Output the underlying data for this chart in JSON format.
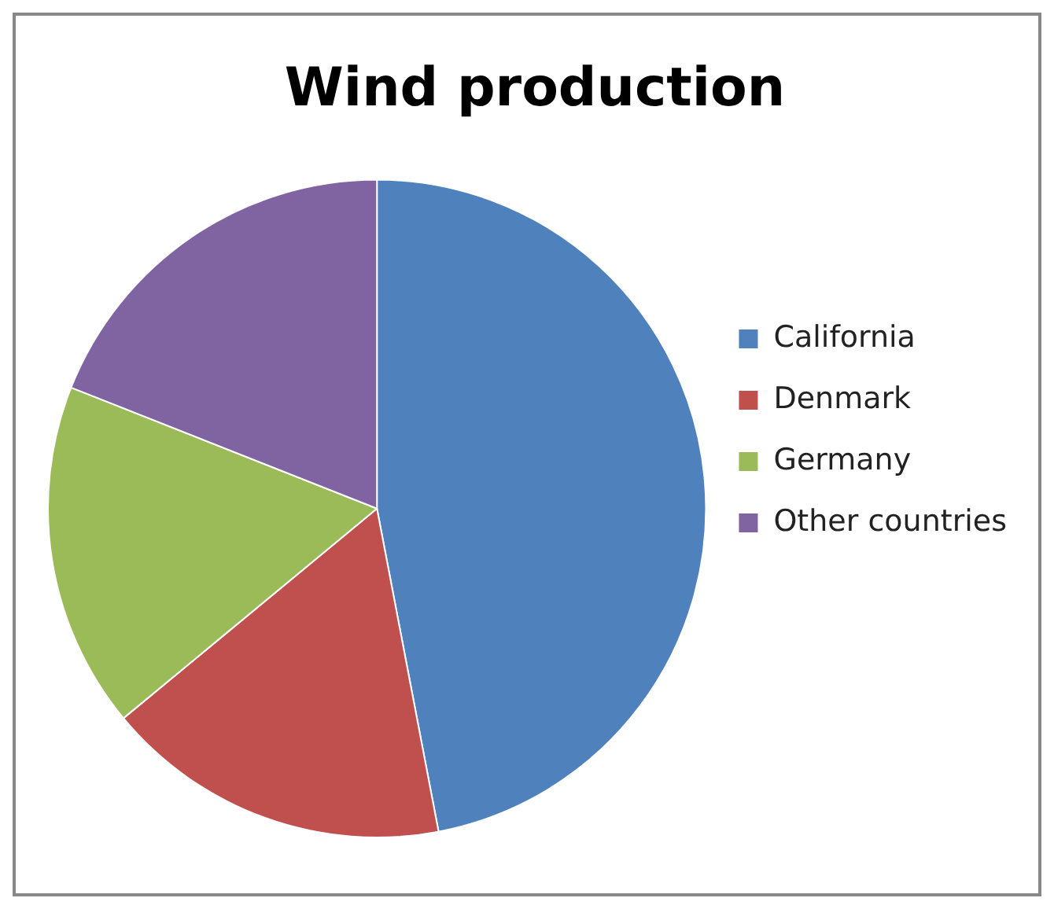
{
  "chart_data": {
    "type": "pie",
    "title": "Wind production",
    "categories": [
      "California",
      "Denmark",
      "Germany",
      "Other countries"
    ],
    "values": [
      47,
      17,
      17,
      19
    ],
    "colors": [
      "#4f81bd",
      "#c0504d",
      "#9bbb59",
      "#8064a2"
    ],
    "legend": "right"
  }
}
